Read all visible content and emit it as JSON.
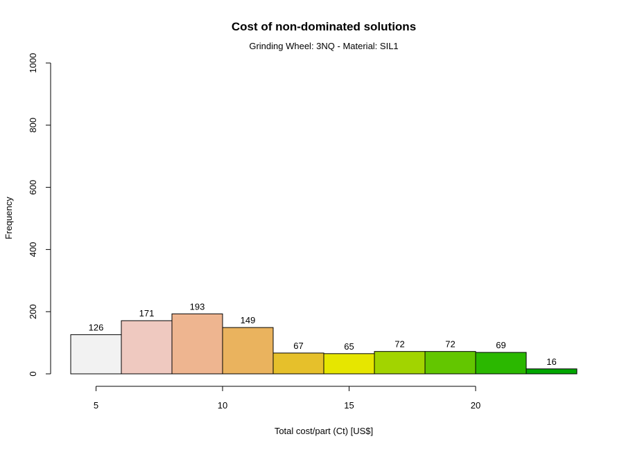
{
  "chart_data": {
    "type": "bar",
    "title": "Cost of non-dominated solutions",
    "subtitle": "Grinding Wheel: 3NQ - Material: SIL1",
    "xlabel": "Total cost/part (Ct) [US$]",
    "ylabel": "Frequency",
    "xlim": [
      4,
      24
    ],
    "ylim": [
      0,
      1000
    ],
    "x_ticks": [
      5,
      10,
      15,
      20
    ],
    "y_ticks": [
      0,
      200,
      400,
      600,
      800,
      1000
    ],
    "grid": false,
    "bins": [
      {
        "x0": 4,
        "x1": 6,
        "value": 126,
        "color": "#F2F2F2"
      },
      {
        "x0": 6,
        "x1": 8,
        "value": 171,
        "color": "#EFC9C0"
      },
      {
        "x0": 8,
        "x1": 10,
        "value": 193,
        "color": "#EEB590"
      },
      {
        "x0": 10,
        "x1": 12,
        "value": 149,
        "color": "#EAB35E"
      },
      {
        "x0": 12,
        "x1": 14,
        "value": 67,
        "color": "#E6C02B"
      },
      {
        "x0": 14,
        "x1": 16,
        "value": 65,
        "color": "#E6E600"
      },
      {
        "x0": 16,
        "x1": 18,
        "value": 72,
        "color": "#A2D400"
      },
      {
        "x0": 18,
        "x1": 20,
        "value": 72,
        "color": "#63C600"
      },
      {
        "x0": 20,
        "x1": 22,
        "value": 69,
        "color": "#2BB800"
      },
      {
        "x0": 22,
        "x1": 24,
        "value": 16,
        "color": "#00A600"
      }
    ]
  }
}
